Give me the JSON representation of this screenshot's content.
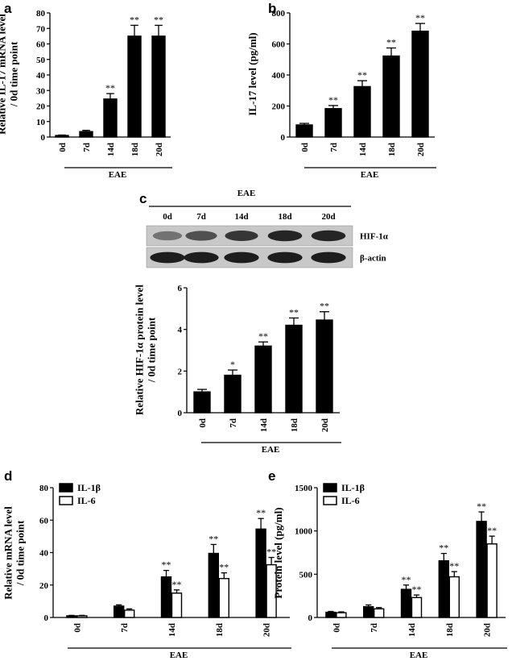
{
  "chart_data": [
    {
      "panel": "a",
      "type": "bar",
      "ylabel": [
        "Relative IL-17 mRNA level",
        "/ 0d time point"
      ],
      "categories": [
        "0d",
        "7d",
        "14d",
        "18d",
        "20d"
      ],
      "values": [
        1,
        3.5,
        24.5,
        65,
        65
      ],
      "errors": [
        0.3,
        0.8,
        3.5,
        7,
        7
      ],
      "significance": [
        "",
        "",
        "**",
        "**",
        "**"
      ],
      "ylim": [
        0,
        80
      ],
      "yticks": [
        0,
        10,
        20,
        30,
        40,
        50,
        60,
        70,
        80
      ],
      "group_label": "EAE"
    },
    {
      "panel": "b",
      "type": "bar",
      "ylabel": [
        "IL-17 level (pg/ml)"
      ],
      "categories": [
        "0d",
        "7d",
        "14d",
        "18d",
        "20d"
      ],
      "values": [
        78,
        183,
        325,
        522,
        682
      ],
      "errors": [
        10,
        20,
        38,
        52,
        50
      ],
      "significance": [
        "",
        "**",
        "**",
        "**",
        "**"
      ],
      "ylim": [
        0,
        800
      ],
      "yticks": [
        0,
        200,
        400,
        600,
        800
      ],
      "group_label": "EAE"
    },
    {
      "panel": "c",
      "type": "bar",
      "ylabel": [
        "Relative HIF-1α  protein level",
        "/ 0d time point"
      ],
      "categories": [
        "0d",
        "7d",
        "14d",
        "18d",
        "20d"
      ],
      "values": [
        1,
        1.8,
        3.2,
        4.2,
        4.45
      ],
      "errors": [
        0.12,
        0.25,
        0.2,
        0.35,
        0.4
      ],
      "significance": [
        "",
        "*",
        "**",
        "**",
        "**"
      ],
      "ylim": [
        0,
        6
      ],
      "yticks": [
        0,
        2,
        4,
        6
      ],
      "group_label": "EAE"
    },
    {
      "panel": "d",
      "type": "bar",
      "ylabel": [
        "Relative mRNA level",
        "/ 0d time point"
      ],
      "categories": [
        "0d",
        "7d",
        "14d",
        "18d",
        "20d"
      ],
      "series": [
        {
          "name": "IL-1β",
          "fill": "#000000",
          "values": [
            1,
            7,
            25,
            39.5,
            54.5
          ],
          "errors": [
            0.3,
            0.8,
            4,
            5.5,
            6.5
          ],
          "significance": [
            "",
            "",
            "**",
            "**",
            "**"
          ]
        },
        {
          "name": "IL-6",
          "fill": "#ffffff",
          "values": [
            1,
            4.5,
            15,
            24,
            32.5
          ],
          "errors": [
            0.3,
            0.8,
            2,
            3.5,
            4.5
          ],
          "significance": [
            "",
            "",
            "**",
            "**",
            "**"
          ]
        }
      ],
      "ylim": [
        0,
        80
      ],
      "yticks": [
        0,
        20,
        40,
        60,
        80
      ],
      "legend": "top-left",
      "group_label": "EAE"
    },
    {
      "panel": "e",
      "type": "bar",
      "ylabel": [
        "Protein level (pg/ml)"
      ],
      "categories": [
        "0d",
        "7d",
        "14d",
        "18d",
        "20d"
      ],
      "series": [
        {
          "name": "IL-1β",
          "fill": "#000000",
          "values": [
            60,
            125,
            325,
            655,
            1110
          ],
          "errors": [
            10,
            20,
            50,
            85,
            110
          ],
          "significance": [
            "",
            "",
            "**",
            "**",
            "**"
          ]
        },
        {
          "name": "IL-6",
          "fill": "#ffffff",
          "values": [
            55,
            100,
            230,
            470,
            850
          ],
          "errors": [
            10,
            15,
            30,
            60,
            90
          ],
          "significance": [
            "",
            "",
            "**",
            "**",
            "**"
          ]
        }
      ],
      "ylim": [
        0,
        1500
      ],
      "yticks": [
        0,
        500,
        1000,
        1500
      ],
      "legend": "top-left",
      "group_label": "EAE"
    }
  ],
  "blot": {
    "panel": "c",
    "group_label": "EAE",
    "lanes": [
      "0d",
      "7d",
      "14d",
      "18d",
      "20d"
    ],
    "rows": [
      {
        "label": "HIF-1α",
        "intensity": [
          0.45,
          0.65,
          0.8,
          0.9,
          0.9
        ]
      },
      {
        "label": "β-actin",
        "intensity": [
          0.95,
          0.95,
          0.95,
          0.95,
          0.95
        ]
      }
    ]
  }
}
